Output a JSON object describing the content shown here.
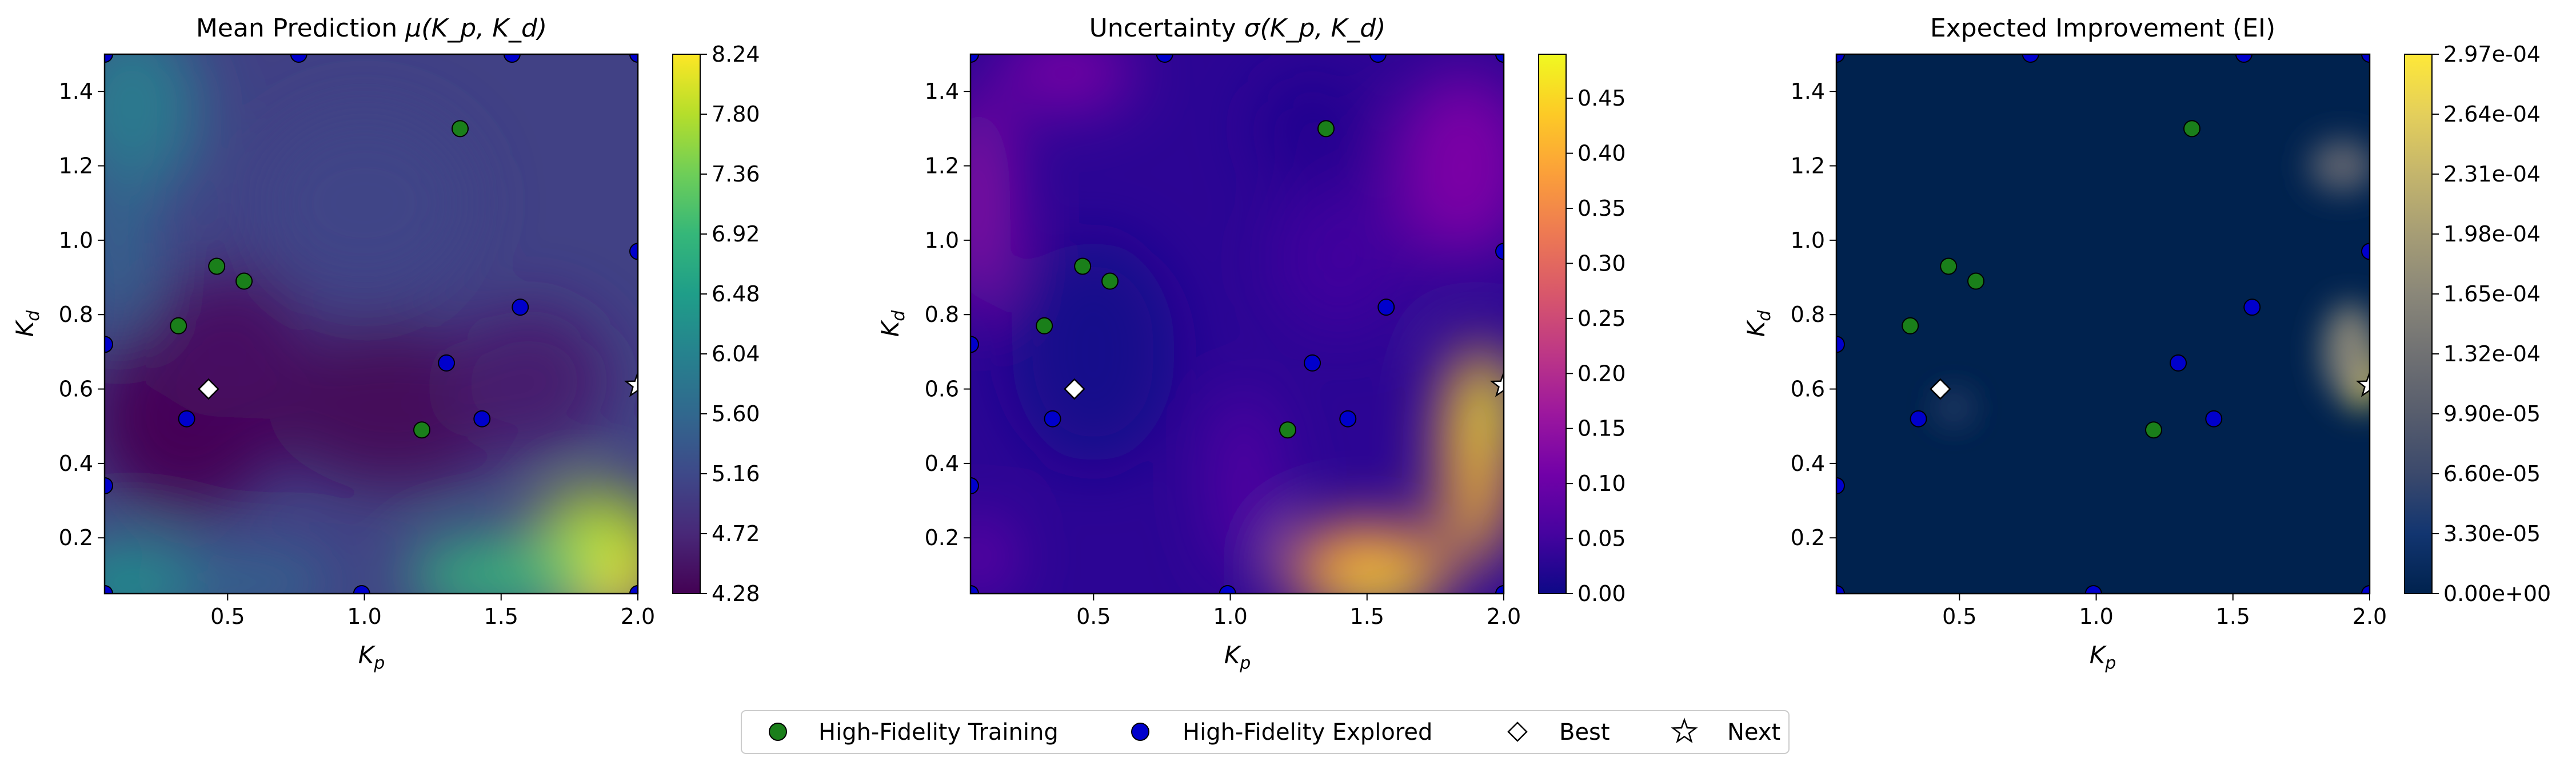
{
  "chart_data": [
    {
      "type": "heatmap",
      "title_main": "Mean Prediction ",
      "title_math": "μ(K_p, K_d)",
      "xlabel": "K_p",
      "ylabel": "K_d",
      "xlim": [
        0.05,
        2.0
      ],
      "ylim": [
        0.05,
        1.5
      ],
      "xticks": [
        "0.5",
        "1.0",
        "1.5",
        "2.0"
      ],
      "yticks": [
        "0.2",
        "0.4",
        "0.6",
        "0.8",
        "1.0",
        "1.2",
        "1.4"
      ],
      "colormap": "viridis",
      "colorbar_range": [
        4.28,
        8.24
      ],
      "colorbar_ticks": [
        "4.28",
        "4.72",
        "5.16",
        "5.60",
        "6.04",
        "6.48",
        "6.92",
        "7.36",
        "7.80",
        "8.24"
      ]
    },
    {
      "type": "heatmap",
      "title_main": "Uncertainty ",
      "title_math": "σ(K_p, K_d)",
      "xlabel": "K_p",
      "ylabel": "K_d",
      "xlim": [
        0.05,
        2.0
      ],
      "ylim": [
        0.05,
        1.5
      ],
      "xticks": [
        "0.5",
        "1.0",
        "1.5",
        "2.0"
      ],
      "yticks": [
        "0.2",
        "0.4",
        "0.6",
        "0.8",
        "1.0",
        "1.2",
        "1.4"
      ],
      "colormap": "plasma",
      "colorbar_range": [
        0.0,
        0.49
      ],
      "colorbar_ticks": [
        "0.00",
        "0.05",
        "0.10",
        "0.15",
        "0.20",
        "0.25",
        "0.30",
        "0.35",
        "0.40",
        "0.45"
      ]
    },
    {
      "type": "heatmap",
      "title_main": "Expected Improvement (EI)",
      "title_math": "",
      "xlabel": "K_p",
      "ylabel": "K_d",
      "xlim": [
        0.05,
        2.0
      ],
      "ylim": [
        0.05,
        1.5
      ],
      "xticks": [
        "0.5",
        "1.0",
        "1.5",
        "2.0"
      ],
      "yticks": [
        "0.2",
        "0.4",
        "0.6",
        "0.8",
        "1.0",
        "1.2",
        "1.4"
      ],
      "colormap": "cividis",
      "colorbar_range": [
        0.0,
        0.000297
      ],
      "colorbar_ticks": [
        "0.00e+00",
        "3.30e-05",
        "6.60e-05",
        "9.90e-05",
        "1.32e-04",
        "1.65e-04",
        "1.98e-04",
        "2.31e-04",
        "2.64e-04",
        "2.97e-04"
      ]
    }
  ],
  "points": {
    "training": [
      [
        0.32,
        0.77
      ],
      [
        0.46,
        0.93
      ],
      [
        0.56,
        0.89
      ],
      [
        1.21,
        0.49
      ],
      [
        1.35,
        1.3
      ]
    ],
    "explored": [
      [
        0.05,
        1.5
      ],
      [
        0.05,
        0.72
      ],
      [
        0.05,
        0.34
      ],
      [
        0.05,
        0.05
      ],
      [
        0.35,
        0.52
      ],
      [
        0.76,
        1.5
      ],
      [
        0.99,
        0.05
      ],
      [
        1.3,
        0.67
      ],
      [
        1.43,
        0.52
      ],
      [
        1.54,
        1.5
      ],
      [
        1.57,
        0.82
      ],
      [
        2.0,
        1.5
      ],
      [
        2.0,
        0.97
      ],
      [
        2.0,
        0.05
      ]
    ],
    "best": [
      0.43,
      0.6
    ],
    "next": [
      2.0,
      0.61
    ]
  },
  "legend": {
    "training_label": "High-Fidelity Training",
    "explored_label": "High-Fidelity Explored",
    "best_label": "Best",
    "next_label": "Next",
    "placement": "bottom-center"
  },
  "colors": {
    "training": "#1a7f1a",
    "explored": "#0000cc"
  }
}
